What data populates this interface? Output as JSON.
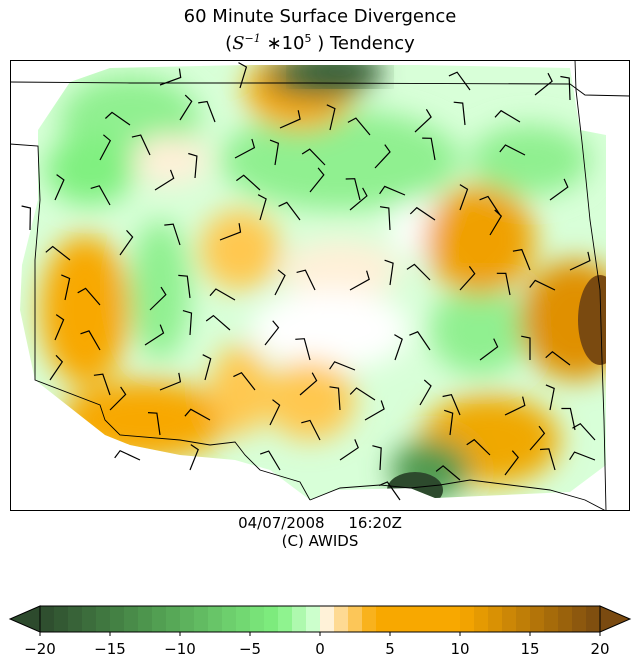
{
  "title": {
    "line1": "60 Minute Surface Divergence",
    "open": "(",
    "math_base": "S",
    "math_exp1": "−1",
    "math_mid": " ∗10",
    "math_exp2": "5",
    "close": " ) Tendency"
  },
  "footer": {
    "date": "04/07/2008",
    "time": "16:20Z",
    "credit": "(C) AWIDS"
  },
  "map": {
    "field": "surface divergence tendency",
    "icons": [
      "wind-barb-icon",
      "state-boundary-lines"
    ]
  },
  "colorbar": {
    "min": -20,
    "max": 20,
    "ticks": [
      -20,
      -15,
      -10,
      -5,
      0,
      5,
      10,
      15,
      20
    ],
    "tick_labels": [
      "−20",
      "−15",
      "−10",
      "−5",
      "0",
      "5",
      "10",
      "15",
      "20"
    ],
    "extend": "both",
    "colors": {
      "neg_dark": "#2d4a2d",
      "neg_mid": "#4f9a4f",
      "neg_light": "#80f080",
      "zero": "#ffffff",
      "pos_light": "#ffe4b0",
      "pos_mid": "#f8a800",
      "pos_dark": "#7a4a10"
    }
  }
}
